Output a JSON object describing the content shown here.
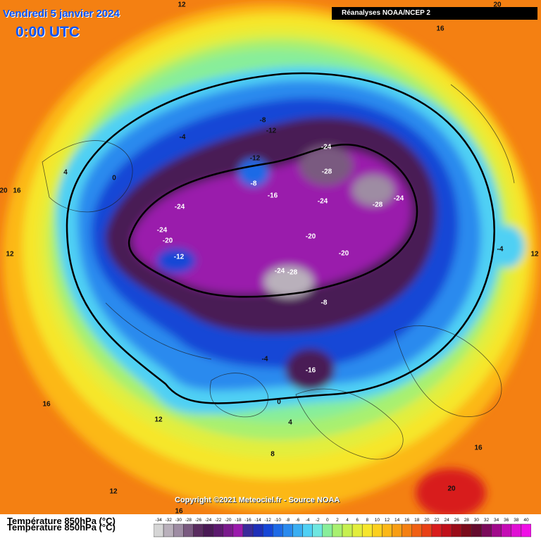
{
  "header": {
    "date": "Vendredi 5 janvier 2024",
    "time": "0:00 UTC",
    "source": "Réanalyses NOAA/NCEP 2"
  },
  "footer": {
    "copyright": "Copyright ©2021 Meteociel.fr - Source NOAA"
  },
  "legend": {
    "title": "Température 850hPa (°C)",
    "ticks": [
      "-34",
      "-32",
      "-30",
      "-28",
      "-26",
      "-24",
      "-22",
      "-20",
      "-18",
      "-16",
      "-14",
      "-12",
      "-10",
      "-8",
      "-6",
      "-4",
      "-2",
      "0",
      "2",
      "4",
      "6",
      "8",
      "10",
      "12",
      "14",
      "16",
      "18",
      "20",
      "22",
      "24",
      "26",
      "28",
      "30",
      "32",
      "34",
      "36",
      "38",
      "40"
    ],
    "colors": [
      "#d6d6d6",
      "#b9b0bb",
      "#9e8ca3",
      "#7a5a80",
      "#5a2c60",
      "#4a1a55",
      "#5c1a6e",
      "#7a1a8c",
      "#9a1aac",
      "#3a2a9a",
      "#1f2fb8",
      "#1646d6",
      "#1e6ae6",
      "#2a8aee",
      "#3aaef2",
      "#4fd0f4",
      "#6ee6e0",
      "#88ee9a",
      "#a8f070",
      "#c6f050",
      "#e2ee3c",
      "#f6e62c",
      "#fcd01e",
      "#fcb818",
      "#f89e14",
      "#f48012",
      "#f06014",
      "#e84016",
      "#d81c1c",
      "#c0101a",
      "#9a0c18",
      "#7a0a1a",
      "#640a2c",
      "#7a0a5a",
      "#a00a8a",
      "#c40cb4",
      "#e010d4",
      "#f010e6"
    ]
  },
  "contour_labels": [
    "20",
    "12",
    "16",
    "4",
    "0",
    "-4",
    "20",
    "16",
    "12",
    "-8",
    "-12",
    "-12",
    "-8",
    "-16",
    "-24",
    "-28",
    "-24",
    "-28",
    "-24",
    "-24",
    "-24",
    "-20",
    "-12",
    "-20",
    "-20",
    "-24",
    "-28",
    "-8",
    "-4",
    "-16",
    "0",
    "4",
    "8",
    "16",
    "12",
    "-4",
    "12",
    "12",
    "16",
    "16",
    "20"
  ]
}
